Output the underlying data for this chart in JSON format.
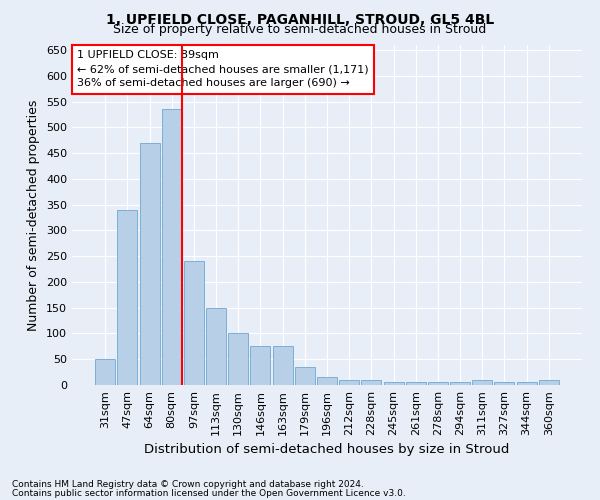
{
  "title": "1, UPFIELD CLOSE, PAGANHILL, STROUD, GL5 4BL",
  "subtitle": "Size of property relative to semi-detached houses in Stroud",
  "xlabel": "Distribution of semi-detached houses by size in Stroud",
  "ylabel": "Number of semi-detached properties",
  "categories": [
    "31sqm",
    "47sqm",
    "64sqm",
    "80sqm",
    "97sqm",
    "113sqm",
    "130sqm",
    "146sqm",
    "163sqm",
    "179sqm",
    "196sqm",
    "212sqm",
    "228sqm",
    "245sqm",
    "261sqm",
    "278sqm",
    "294sqm",
    "311sqm",
    "327sqm",
    "344sqm",
    "360sqm"
  ],
  "values": [
    50,
    340,
    470,
    535,
    240,
    150,
    100,
    75,
    75,
    35,
    15,
    10,
    10,
    5,
    5,
    5,
    5,
    10,
    5,
    5,
    10
  ],
  "bar_color": "#b8cfe8",
  "bar_edge_color": "#7aafd4",
  "annotation_line1": "1 UPFIELD CLOSE: 89sqm",
  "annotation_line2": "← 62% of semi-detached houses are smaller (1,171)",
  "annotation_line3": "36% of semi-detached houses are larger (690) →",
  "ylim": [
    0,
    660
  ],
  "yticks": [
    0,
    50,
    100,
    150,
    200,
    250,
    300,
    350,
    400,
    450,
    500,
    550,
    600,
    650
  ],
  "footnote1": "Contains HM Land Registry data © Crown copyright and database right 2024.",
  "footnote2": "Contains public sector information licensed under the Open Government Licence v3.0.",
  "bg_color": "#e8eef8",
  "plot_bg_color": "#e8eef8",
  "grid_color": "#ffffff",
  "title_fontsize": 10,
  "subtitle_fontsize": 9,
  "axis_label_fontsize": 9,
  "tick_fontsize": 8,
  "annot_fontsize": 8
}
